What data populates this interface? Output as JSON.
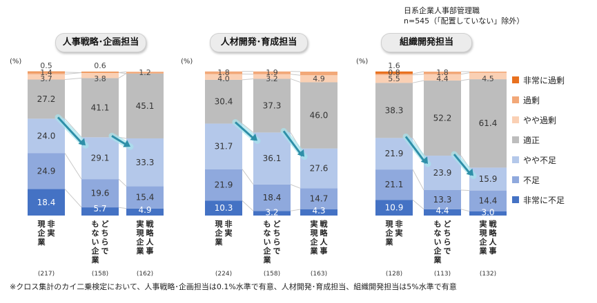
{
  "note": {
    "line1": "日系企業人事部管理職",
    "line2": "n=545（「配置していない」除外）"
  },
  "footnote": "※クロス集計のカイ二乗検定において、人事戦略･企画担当は0.1%水準で有意、人材開発･育成担当、組織開発担当は5%水準で有意",
  "unit_label": "(%)",
  "colors": {
    "非常に過剰": "#e8711f",
    "過剰": "#f2a878",
    "やや過剰": "#fad0b4",
    "適正": "#bdbdbd",
    "やや不足": "#b4c8ea",
    "不足": "#8fa9dd",
    "非常に不足": "#4472c4",
    "arrow": "#2e8fa8",
    "connector": "#c8c8c8"
  },
  "chart_data": [
    {
      "type": "bar",
      "stacked": true,
      "title": "人事戦略･企画担当",
      "categories": [
        "非実現企業",
        "どちらでもない企業",
        "戦略人事実現企業"
      ],
      "n": [
        "(217)",
        "(158)",
        "(162)"
      ],
      "series": [
        {
          "name": "非常に不足",
          "values": [
            18.4,
            5.7,
            4.9
          ]
        },
        {
          "name": "不足",
          "values": [
            24.9,
            19.6,
            15.4
          ]
        },
        {
          "name": "やや不足",
          "values": [
            24.0,
            29.1,
            33.3
          ]
        },
        {
          "name": "適正",
          "values": [
            27.2,
            41.1,
            45.1
          ]
        },
        {
          "name": "やや過剰",
          "values": [
            3.7,
            3.8,
            0.0
          ]
        },
        {
          "name": "過剰",
          "values": [
            1.4,
            0.0,
            1.2
          ]
        },
        {
          "name": "非常に過剰",
          "values": [
            0.5,
            0.6,
            0.0
          ]
        }
      ],
      "labels": [
        [
          "18.4",
          "5.7",
          "4.9"
        ],
        [
          "24.9",
          "19.6",
          "15.4"
        ],
        [
          "24.0",
          "29.1",
          "33.3"
        ],
        [
          "27.2",
          "41.1",
          "45.1"
        ],
        [
          "3.7",
          "3.8",
          ""
        ],
        [
          "1.4",
          "",
          "1.2"
        ],
        [
          "0.5",
          "0.6",
          ""
        ]
      ],
      "ylim": [
        0,
        100
      ]
    },
    {
      "type": "bar",
      "stacked": true,
      "title": "人材開発･育成担当",
      "categories": [
        "非実現企業",
        "どちらでもない企業",
        "戦略人事実現企業"
      ],
      "n": [
        "(224)",
        "(158)",
        "(163)"
      ],
      "series": [
        {
          "name": "非常に不足",
          "values": [
            10.3,
            3.2,
            4.3
          ]
        },
        {
          "name": "不足",
          "values": [
            21.9,
            18.4,
            14.7
          ]
        },
        {
          "name": "やや不足",
          "values": [
            31.7,
            36.1,
            27.6
          ]
        },
        {
          "name": "適正",
          "values": [
            30.4,
            37.3,
            46.0
          ]
        },
        {
          "name": "やや過剰",
          "values": [
            4.0,
            3.2,
            4.9
          ]
        },
        {
          "name": "過剰",
          "values": [
            1.8,
            1.9,
            2.5
          ]
        },
        {
          "name": "非常に過剰",
          "values": [
            0.0,
            0.0,
            0.0
          ]
        }
      ],
      "labels": [
        [
          "10.3",
          "3.2",
          "4.3"
        ],
        [
          "21.9",
          "18.4",
          "14.7"
        ],
        [
          "31.7",
          "36.1",
          "27.6"
        ],
        [
          "30.4",
          "37.3",
          "46.0"
        ],
        [
          "4.0",
          "3.2",
          "4.9"
        ],
        [
          "1.8",
          "1.9",
          ""
        ],
        [
          "",
          "",
          ""
        ]
      ],
      "ylim": [
        0,
        100
      ]
    },
    {
      "type": "bar",
      "stacked": true,
      "title": "組織開発担当",
      "categories": [
        "非実現企業",
        "どちらでもない企業",
        "戦略人事実現企業"
      ],
      "n": [
        "(128)",
        "(113)",
        "(132)"
      ],
      "series": [
        {
          "name": "非常に不足",
          "values": [
            10.9,
            4.4,
            3.0
          ]
        },
        {
          "name": "不足",
          "values": [
            21.1,
            13.3,
            14.4
          ]
        },
        {
          "name": "やや不足",
          "values": [
            21.9,
            23.9,
            15.9
          ]
        },
        {
          "name": "適正",
          "values": [
            38.3,
            52.2,
            61.4
          ]
        },
        {
          "name": "やや過剰",
          "values": [
            5.5,
            4.4,
            4.5
          ]
        },
        {
          "name": "過剰",
          "values": [
            0.8,
            1.8,
            0.8
          ]
        },
        {
          "name": "非常に過剰",
          "values": [
            1.6,
            0.0,
            0.0
          ]
        }
      ],
      "labels": [
        [
          "10.9",
          "4.4",
          "3.0"
        ],
        [
          "21.1",
          "13.3",
          "14.4"
        ],
        [
          "21.9",
          "23.9",
          "15.9"
        ],
        [
          "38.3",
          "52.2",
          "61.4"
        ],
        [
          "5.5",
          "4.4",
          "4.5"
        ],
        [
          "0.8",
          "1.8",
          ""
        ],
        [
          "1.6",
          "",
          ""
        ]
      ],
      "ylim": [
        0,
        100
      ]
    }
  ],
  "legend": [
    "非常に過剰",
    "過剰",
    "やや過剰",
    "適正",
    "やや不足",
    "不足",
    "非常に不足"
  ]
}
